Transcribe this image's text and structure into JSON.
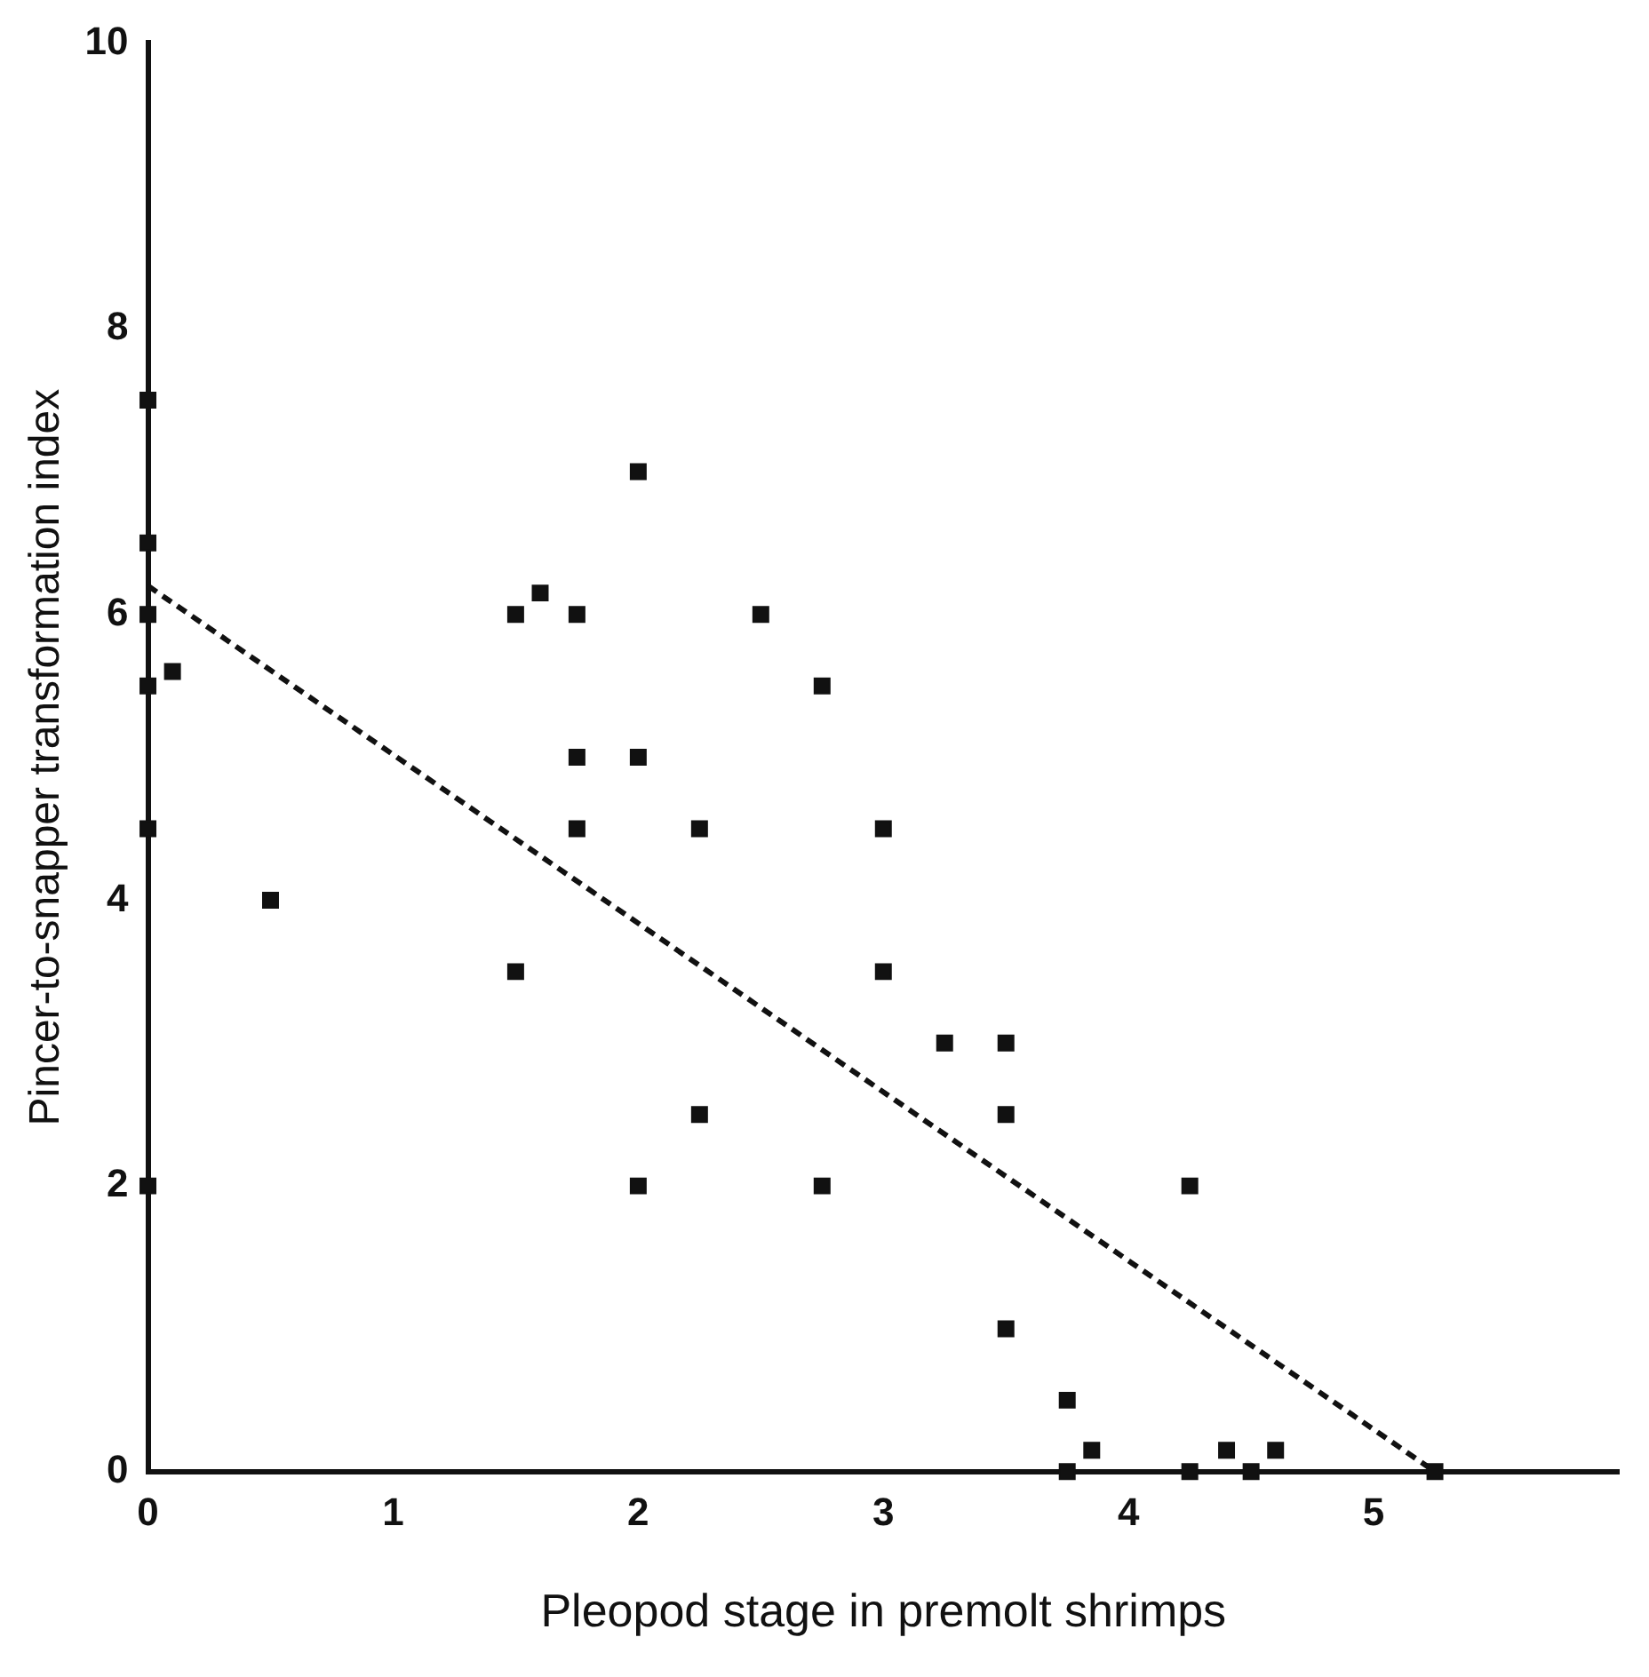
{
  "chart_data": {
    "type": "scatter",
    "xlabel": "Pleopod stage in premolt shrimps",
    "ylabel": "Pincer-to-snapper transformation index",
    "xlim": [
      0,
      6
    ],
    "xticks": [
      0,
      1,
      2,
      3,
      4,
      5
    ],
    "ylim": [
      0,
      10
    ],
    "yticks": [
      0,
      2,
      4,
      6,
      8,
      10
    ],
    "grid": false,
    "legend": false,
    "marker": "square",
    "series": [
      {
        "color": "#111111",
        "x": [
          0,
          0,
          0,
          0,
          0.1,
          0,
          0,
          0.5,
          1.5,
          1.6,
          1.75,
          1.75,
          1.75,
          1.5,
          2,
          2,
          2,
          2.25,
          2.25,
          2.5,
          2.75,
          2.75,
          3,
          3,
          3.25,
          3.5,
          3.5,
          3.5,
          3.75,
          3.75,
          3.85,
          4.25,
          4.25,
          4.4,
          4.5,
          4.6,
          5.25
        ],
        "values": [
          7.5,
          6.5,
          6,
          5.5,
          5.6,
          4.5,
          2,
          4,
          6,
          6.15,
          6,
          5,
          4.5,
          3.5,
          7,
          5,
          2,
          4.5,
          2.5,
          6,
          5.5,
          2,
          4.5,
          3.5,
          3,
          3,
          2.5,
          1,
          0.5,
          0,
          0.15,
          0,
          2,
          0.15,
          0,
          0.15,
          0
        ]
      },
      {
        "type": "line",
        "color": "#111111",
        "line_style": "dashed",
        "marker": "none",
        "x": [
          0,
          5.25
        ],
        "values": [
          6.2,
          0
        ]
      }
    ]
  }
}
